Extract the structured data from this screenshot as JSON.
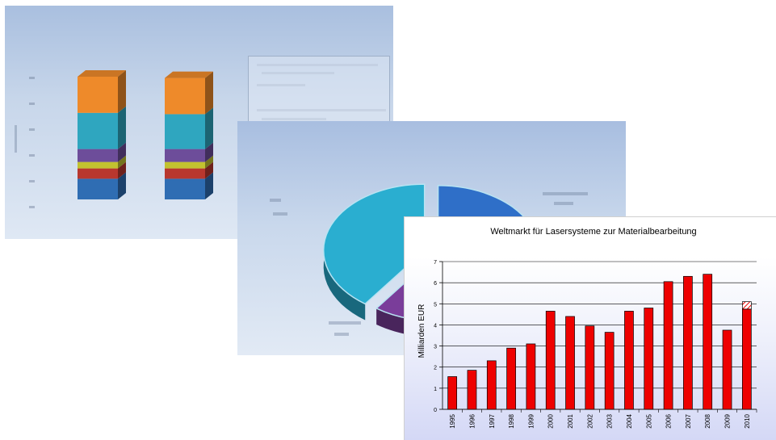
{
  "chart_data": [
    {
      "type": "bar",
      "title": "",
      "stacked": true,
      "categories": [
        "",
        ""
      ],
      "series": [
        {
          "values": [
            16,
            16
          ]
        },
        {
          "values": [
            8,
            8
          ]
        },
        {
          "values": [
            5,
            5
          ]
        },
        {
          "values": [
            10,
            10
          ]
        },
        {
          "values": [
            28,
            27
          ]
        },
        {
          "values": [
            28,
            28
          ]
        }
      ],
      "ylim": [
        0,
        100
      ],
      "colors": [
        "#2f6db3",
        "#b8372e",
        "#c2c230",
        "#6d4d9a",
        "#2fa6bf",
        "#ee8a2a"
      ]
    },
    {
      "type": "pie",
      "title": "",
      "slices": [
        {
          "value": 35,
          "color": "#2f6fc8"
        },
        {
          "value": 25,
          "color": "#7a3d9a"
        },
        {
          "value": 40,
          "color": "#2aaed0"
        }
      ]
    },
    {
      "type": "bar",
      "title": "Weltmarkt für Lasersysteme zur Materialbearbeitung",
      "xlabel": "",
      "ylabel": "Milliarden EUR",
      "ylim": [
        0,
        7
      ],
      "yticks": [
        "0",
        "1",
        "2",
        "3",
        "4",
        "5",
        "6",
        "7"
      ],
      "categories": [
        "1995",
        "1996",
        "1997",
        "1998",
        "1999",
        "2000",
        "2001",
        "2002",
        "2003",
        "2004",
        "2005",
        "2006",
        "2007",
        "2008",
        "2009",
        "2010"
      ],
      "values": [
        1.55,
        1.85,
        2.3,
        2.9,
        3.1,
        4.65,
        4.4,
        3.95,
        3.65,
        4.65,
        4.8,
        6.05,
        6.3,
        6.4,
        3.75,
        4.75
      ],
      "forecast_extra": {
        "category": "2010",
        "value": 0.35
      },
      "bar_color": "#ee0000",
      "grid": true
    }
  ]
}
